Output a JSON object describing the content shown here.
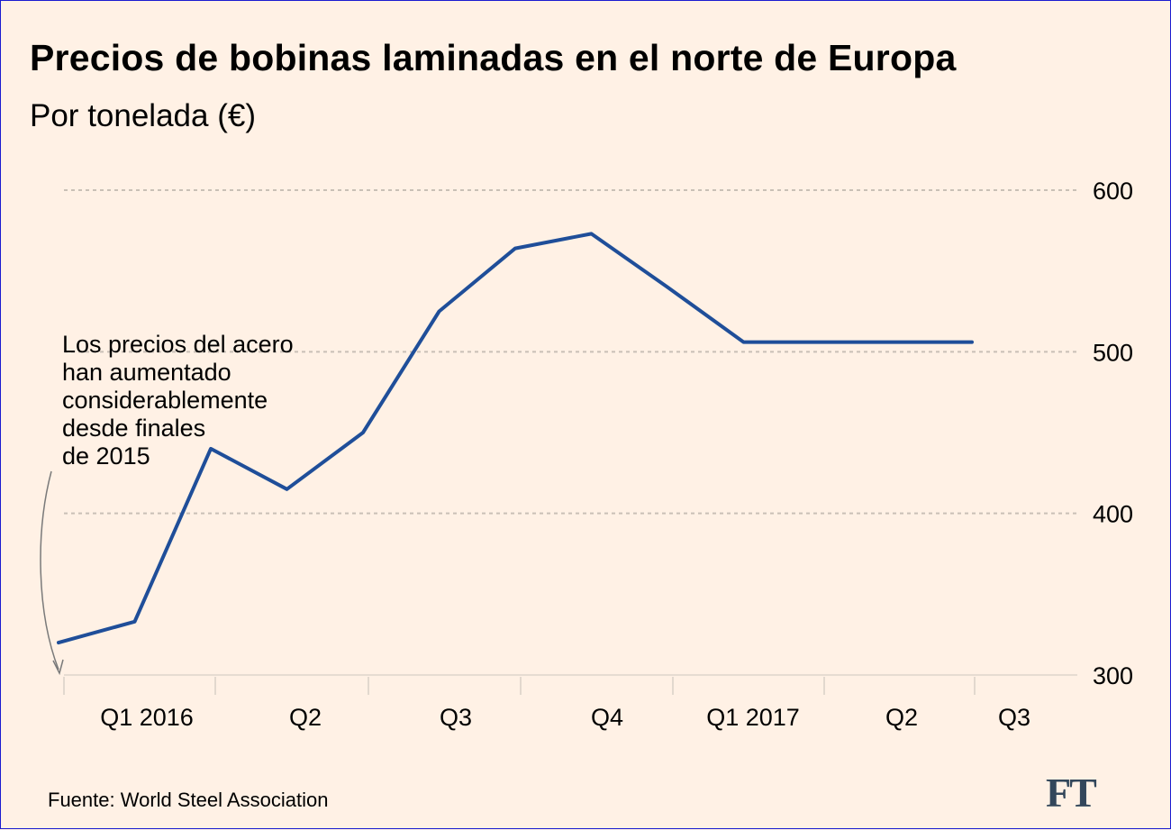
{
  "chart_data": {
    "type": "line",
    "title": "Precios de bobinas laminadas en el norte de Europa",
    "subtitle": "Por tonelada (€)",
    "x": [
      0,
      0.5,
      1,
      1.5,
      2,
      2.5,
      3,
      3.5,
      4,
      4.5,
      5,
      5.5,
      6
    ],
    "x_tick_labels": [
      "Q1  2016",
      "Q2",
      "Q3",
      "Q4",
      "Q1 2017",
      "Q2",
      "Q3"
    ],
    "series": [
      {
        "values": [
          320,
          333,
          440,
          415,
          450,
          525,
          564,
          573,
          540,
          506,
          506,
          506,
          506
        ]
      }
    ],
    "y_ticks": [
      300,
      400,
      500,
      600
    ],
    "ylim": [
      300,
      600
    ],
    "grid": true,
    "y_axis_position": "right",
    "line_color": "#1f4e99",
    "annotation": "Los precios del acero\nhan aumentado\nconsiderablemente\ndesde finales\nde 2015"
  },
  "source": "Fuente: World Steel Association",
  "logo": "FT",
  "colors": {
    "background": "#fff1e5",
    "grid": "#c9c0b6",
    "line": "#1f4e99",
    "border": "#1b1bd0"
  }
}
